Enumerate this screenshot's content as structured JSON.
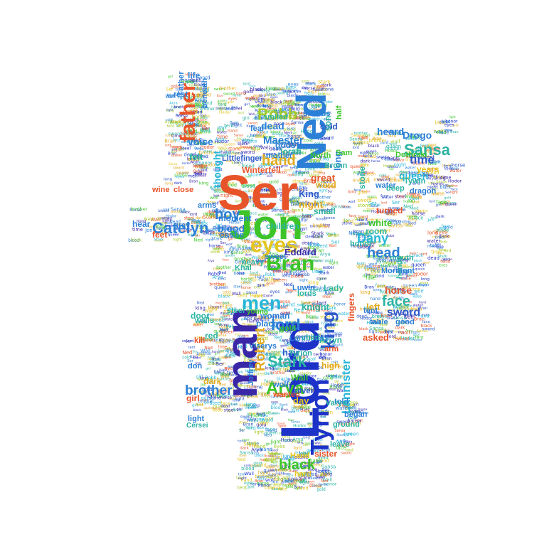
{
  "words": [
    {
      "text": "Ser",
      "color": "#e8542a"
    },
    {
      "text": "Jon",
      "color": "#3cc429"
    },
    {
      "text": "Lord",
      "color": "#1d33c8"
    },
    {
      "text": "Ned",
      "color": "#2b7fd6"
    },
    {
      "text": "man",
      "color": "#3a27a8"
    },
    {
      "text": "Bran",
      "color": "#3cc429"
    },
    {
      "text": "eyes",
      "color": "#e3c51e"
    },
    {
      "text": "men",
      "color": "#27b6d9"
    },
    {
      "text": "father",
      "color": "#e8542a"
    },
    {
      "text": "Tyrion",
      "color": "#1d33c8"
    },
    {
      "text": "king",
      "color": "#2e59c9"
    },
    {
      "text": "Catelyn",
      "color": "#2b7fd6"
    },
    {
      "text": "Arya",
      "color": "#3cc429"
    },
    {
      "text": "Robb",
      "color": "#a6c92a"
    },
    {
      "text": "hand",
      "color": "#e3aa1e"
    },
    {
      "text": "Sansa",
      "color": "#2bb3a2"
    },
    {
      "text": "Dany",
      "color": "#27b6d9"
    },
    {
      "text": "face",
      "color": "#2bb3a2"
    },
    {
      "text": "head",
      "color": "#2b7fd6"
    },
    {
      "text": "brother",
      "color": "#2b7fd6"
    },
    {
      "text": "Stark",
      "color": "#2bb3a2"
    },
    {
      "text": "lord",
      "color": "#2b7fd6"
    },
    {
      "text": "boy",
      "color": "#2b7fd6"
    },
    {
      "text": "Robert",
      "color": "#e3aa1e"
    },
    {
      "text": "time",
      "color": "#2e59c9"
    },
    {
      "text": "sword",
      "color": "#2e59c9"
    },
    {
      "text": "black",
      "color": "#3cc429"
    },
    {
      "text": "Lannister",
      "color": "#27b6d9"
    },
    {
      "text": "heard",
      "color": "#2b7fd6"
    },
    {
      "text": "Drogo",
      "color": "#2b7fd6"
    },
    {
      "text": "Maester",
      "color": "#2b7fd6"
    },
    {
      "text": "thought",
      "color": "#27b6d9"
    },
    {
      "text": "voice",
      "color": "#2b7fd6"
    },
    {
      "text": "dead",
      "color": "#2b7fd6"
    },
    {
      "text": "night",
      "color": "#e3aa1e"
    },
    {
      "text": "blood",
      "color": "#2b7fd6"
    },
    {
      "text": "Winterfell",
      "color": "#e8542a"
    },
    {
      "text": "great",
      "color": "#e8542a"
    },
    {
      "text": "King",
      "color": "#2e59c9"
    },
    {
      "text": "Eddard",
      "color": "#3a27a8"
    },
    {
      "text": "queen",
      "color": "#27b6d9"
    },
    {
      "text": "years",
      "color": "#e3c51e"
    },
    {
      "text": "horse",
      "color": "#e8542a"
    },
    {
      "text": "asked",
      "color": "#e8542a"
    },
    {
      "text": "felt",
      "color": "#2bb3a2"
    },
    {
      "text": "long",
      "color": "#2b7fd6"
    },
    {
      "text": "sister",
      "color": "#e8542a"
    },
    {
      "text": "day",
      "color": "#e3c51e"
    },
    {
      "text": "hair",
      "color": "#2e59c9"
    },
    {
      "text": "knight",
      "color": "#2bb3a2"
    },
    {
      "text": "left",
      "color": "#e3aa1e"
    },
    {
      "text": "white",
      "color": "#3cc429"
    },
    {
      "text": "girl",
      "color": "#e8542a"
    },
    {
      "text": "door",
      "color": "#2bb3a2"
    },
    {
      "text": "high",
      "color": "#e3aa1e"
    },
    {
      "text": "children",
      "color": "#2bb3a2"
    },
    {
      "text": "moment",
      "color": "#2b7fd6"
    },
    {
      "text": "gods",
      "color": "#2b7fd6"
    },
    {
      "text": "cold",
      "color": "#2e59c9"
    },
    {
      "text": "Littlefinger",
      "color": "#2e59c9"
    },
    {
      "text": "Jorah",
      "color": "#2bb3a2"
    },
    {
      "text": "turned",
      "color": "#e8542a"
    },
    {
      "text": "room",
      "color": "#2bb3a2"
    },
    {
      "text": "hands",
      "color": "#2bb3a2"
    },
    {
      "text": "place",
      "color": "#2b7fd6"
    },
    {
      "text": "woman",
      "color": "#2b7fd6"
    },
    {
      "text": "small",
      "color": "#2bb3a2"
    },
    {
      "text": "stone",
      "color": "#2bb3a2"
    },
    {
      "text": "word",
      "color": "#e3aa1e"
    },
    {
      "text": "life",
      "color": "#2b7fd6"
    },
    {
      "text": "Lady",
      "color": "#2bb3a2"
    },
    {
      "text": "fingers",
      "color": "#e8542a"
    },
    {
      "text": "Arryn",
      "color": "#2bb3a2"
    },
    {
      "text": "Wall",
      "color": "#3cc429"
    },
    {
      "text": "son",
      "color": "#2bb3a2"
    },
    {
      "text": "Lannisters",
      "color": "#2b7fd6"
    },
    {
      "text": "Dothraki",
      "color": "#3cc429"
    },
    {
      "text": "Tywin",
      "color": "#2bb3a2"
    },
    {
      "text": "castle",
      "color": "#2b7fd6"
    },
    {
      "text": "feet",
      "color": "#e8542a"
    },
    {
      "text": "hear",
      "color": "#2b7fd6"
    },
    {
      "text": "red",
      "color": "#2bb3a2"
    },
    {
      "text": "dark",
      "color": "#e3aa1e"
    },
    {
      "text": "Mormont",
      "color": "#2b7fd6"
    },
    {
      "text": "good",
      "color": "#2b7fd6"
    },
    {
      "text": "fear",
      "color": "#2b7fd6"
    },
    {
      "text": "North",
      "color": "#3cc429"
    },
    {
      "text": "Khal",
      "color": "#2bb3a2"
    },
    {
      "text": "sweet",
      "color": "#2b7fd6"
    },
    {
      "text": "steel",
      "color": "#2bb3a2"
    },
    {
      "text": "walls",
      "color": "#2bb3a2"
    },
    {
      "text": "gold",
      "color": "#3cc429"
    },
    {
      "text": "Luwin",
      "color": "#2b7fd6"
    },
    {
      "text": "arm",
      "color": "#e8542a"
    },
    {
      "text": "lords",
      "color": "#2bb3a2"
    },
    {
      "text": "told",
      "color": "#2b7fd6"
    },
    {
      "text": "began",
      "color": "#2b7fd6"
    },
    {
      "text": "leave",
      "color": "#2bb3a2"
    },
    {
      "text": "hard",
      "color": "#e3c51e"
    },
    {
      "text": "Hand",
      "color": "#e3c51e"
    },
    {
      "text": "don",
      "color": "#2b7fd6"
    },
    {
      "text": "Varys",
      "color": "#2bb3a2"
    },
    {
      "text": "wolf",
      "color": "#2b7fd6"
    },
    {
      "text": "wanted",
      "color": "#e8542a"
    },
    {
      "text": "silver",
      "color": "#2e59c9"
    },
    {
      "text": "ground",
      "color": "#2bb3a2"
    },
    {
      "text": "heavy",
      "color": "#2bb3a2"
    },
    {
      "text": "half",
      "color": "#3cc429"
    },
    {
      "text": "grey",
      "color": "#2b7fd6"
    },
    {
      "text": "arms",
      "color": "#2b7fd6"
    },
    {
      "text": "wine",
      "color": "#e8542a"
    },
    {
      "text": "close",
      "color": "#e8542a"
    },
    {
      "text": "mother",
      "color": "#2b7fd6"
    },
    {
      "text": "Bronn",
      "color": "#2bb3a2"
    },
    {
      "text": "Sam",
      "color": "#3cc429"
    },
    {
      "text": "light",
      "color": "#2b7fd6"
    },
    {
      "text": "child",
      "color": "#2bb3a2"
    },
    {
      "text": "beneath",
      "color": "#2b7fd6"
    },
    {
      "text": "smiled",
      "color": "#2bb3a2"
    },
    {
      "text": "swords",
      "color": "#2b7fd6"
    },
    {
      "text": "Father",
      "color": "#2b7fd6"
    },
    {
      "text": "rest",
      "color": "#2b7fd6"
    },
    {
      "text": "honor",
      "color": "#2bb3a2"
    },
    {
      "text": "dragon",
      "color": "#2b7fd6"
    },
    {
      "text": "water",
      "color": "#2b7fd6"
    },
    {
      "text": "tent",
      "color": "#2b7fd6"
    },
    {
      "text": "table",
      "color": "#2b7fd6"
    },
    {
      "text": "mouth",
      "color": "#2bb3a2"
    },
    {
      "text": "deep",
      "color": "#2bb3a2"
    },
    {
      "text": "Tyrion",
      "color": "#2bb3a2"
    },
    {
      "text": "young",
      "color": "#3cc429"
    },
    {
      "text": "Cersei",
      "color": "#2bb3a2"
    },
    {
      "text": "Viserys",
      "color": "#2b7fd6"
    },
    {
      "text": "kill",
      "color": "#e8542a"
    },
    {
      "text": "Joffrey",
      "color": "#2b7fd6"
    }
  ],
  "filler": [
    "black",
    "brother",
    "Stark",
    "queen",
    "Hodor",
    "Bran",
    "horse",
    "dark",
    "sword",
    "long",
    "eyes",
    "lord",
    "cold",
    "gold",
    "wolf",
    "Wall",
    "night",
    "king",
    "blood",
    "men",
    "hand",
    "face",
    "Jon",
    "Ned",
    "Arya",
    "Ser",
    "dead",
    "Robb",
    "Sansa",
    "water",
    "tent",
    "light",
    "stone",
    "honor",
    "girl",
    "time",
    "steel"
  ],
  "colors": [
    "#e8542a",
    "#3cc429",
    "#1d33c8",
    "#2b7fd6",
    "#3a27a8",
    "#e3c51e",
    "#27b6d9",
    "#2bb3a2",
    "#a6c92a",
    "#e3aa1e",
    "#2e59c9"
  ]
}
